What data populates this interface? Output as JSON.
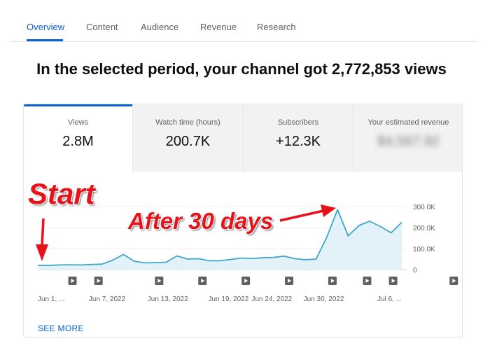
{
  "tabs": [
    {
      "label": "Overview",
      "active": true
    },
    {
      "label": "Content",
      "active": false
    },
    {
      "label": "Audience",
      "active": false
    },
    {
      "label": "Revenue",
      "active": false
    },
    {
      "label": "Research",
      "active": false
    }
  ],
  "headline": "In the selected period, your channel got 2,772,853 views",
  "metrics": [
    {
      "label": "Views",
      "value": "2.8M",
      "selected": true
    },
    {
      "label": "Watch time (hours)",
      "value": "200.7K",
      "selected": false
    },
    {
      "label": "Subscribers",
      "value": "+12.3K",
      "selected": false
    },
    {
      "label": "Your estimated revenue",
      "value": "$4,567.92",
      "selected": false,
      "blurred": true
    }
  ],
  "see_more_label": "SEE MORE",
  "annotations": {
    "start": "Start",
    "after": "After 30 days",
    "color": "#e8121a"
  },
  "colors": {
    "accent": "#065fd4",
    "line": "#3ea6c8",
    "fill": "#e3f2f8",
    "annotation": "#e8121a"
  },
  "chart_data": {
    "type": "area",
    "series": [
      {
        "values": [
          20000,
          20000,
          22000,
          23000,
          22000,
          24000,
          26000,
          45000,
          72000,
          40000,
          32000,
          33000,
          35000,
          65000,
          50000,
          52000,
          42000,
          42000,
          48000,
          55000,
          53000,
          56000,
          58000,
          64000,
          52000,
          47000,
          50000,
          155000,
          285000,
          160000,
          210000,
          230000,
          205000,
          175000,
          225000
        ]
      }
    ],
    "x_tick_labels": [
      "Jun 1, ...",
      "Jun 7, 2022",
      "Jun 13, 2022",
      "Jun 19, 2022",
      "Jun 24, 2022",
      "Jun 30, 2022",
      "Jul 6, ..."
    ],
    "x_tick_indices": [
      1,
      8,
      15,
      22,
      27,
      33,
      40
    ],
    "y_tick_labels": [
      "300.0K",
      "200.0K",
      "100.0K",
      "0"
    ],
    "y_tick_values": [
      300000,
      200000,
      100000,
      0
    ],
    "ylim": [
      0,
      300000
    ],
    "y_axis_position": "right",
    "grid": true,
    "video_marker_indices": [
      4,
      7,
      14,
      19,
      24,
      29,
      34,
      38,
      41,
      48,
      53,
      58
    ]
  }
}
